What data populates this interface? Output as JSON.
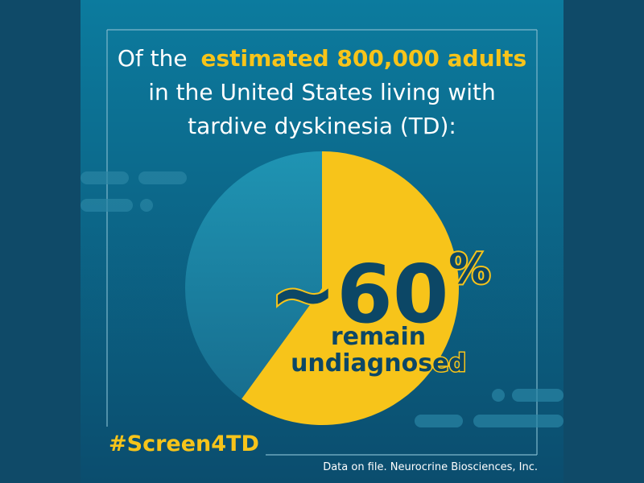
{
  "chart_data": {
    "type": "pie",
    "title": {
      "lead": "Of the",
      "highlight": "estimated 800,000 adults",
      "rest": [
        "in the United States living with",
        "tardive dyskinesia (TD):"
      ]
    },
    "categories": [
      "remain undiagnosed",
      null
    ],
    "values": [
      60,
      40
    ],
    "value_labels": [
      "~60%",
      null
    ],
    "colors": [
      "#f7c41a",
      "#1f8fae"
    ],
    "hashtag": "#Screen4TD",
    "footnote": "Data on file. Neurocrine Biosciences, Inc."
  }
}
